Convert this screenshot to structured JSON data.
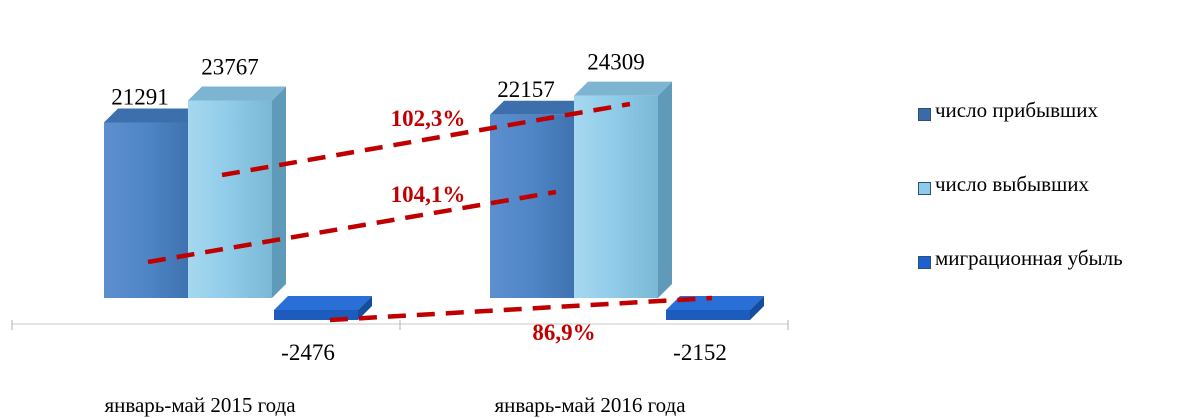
{
  "chart_data": {
    "type": "bar",
    "categories": [
      "январь-май 2015 года",
      "январь-май 2016 года"
    ],
    "series": [
      {
        "name": "число прибывших",
        "values": [
          21291,
          22157
        ],
        "color": "#4f86c6"
      },
      {
        "name": "число выбывших",
        "values": [
          23767,
          24309
        ],
        "color": "#8fcbe8"
      },
      {
        "name": "миграционная убыль",
        "values": [
          -2476,
          -2152
        ],
        "color": "#2a6fd6"
      }
    ],
    "data_labels": [
      [
        "21291",
        "23767",
        "-2476"
      ],
      [
        "22157",
        "24309",
        "-2152"
      ]
    ],
    "growth_annotations": [
      {
        "label": "102,3%",
        "series": "число выбывших",
        "color": "#c00000"
      },
      {
        "label": "104,1%",
        "series": "число прибывших",
        "color": "#c00000"
      },
      {
        "label": "86,9%",
        "series": "миграционная убыль",
        "color": "#c00000"
      }
    ],
    "legend_position": "right",
    "grid": false
  }
}
